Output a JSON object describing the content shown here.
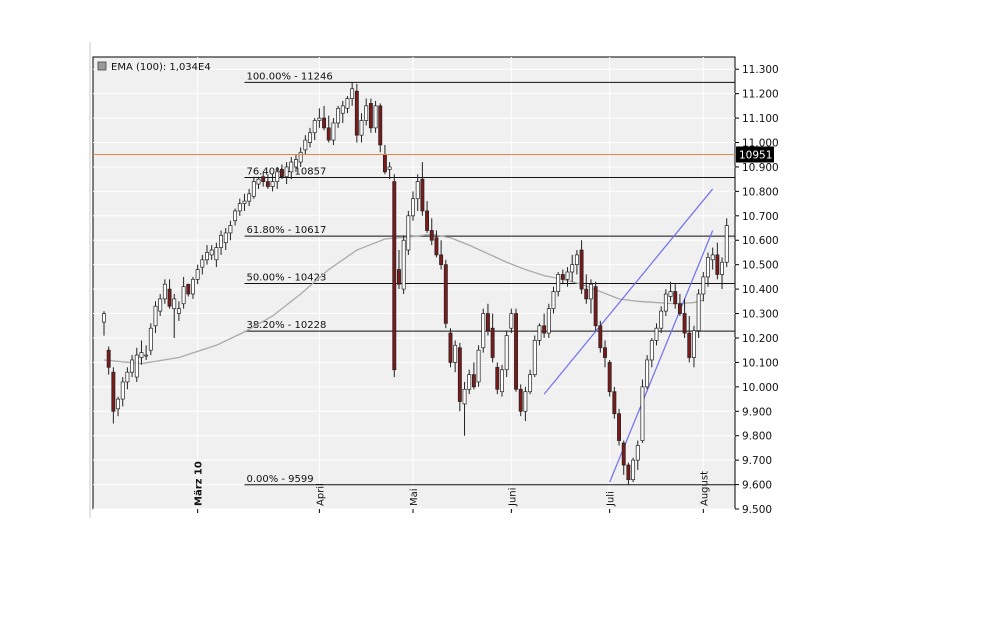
{
  "legend": {
    "label": "EMA (100): 1,034E4",
    "swatch_color": "#9a9a9a"
  },
  "chart_data": {
    "type": "candlestick",
    "y_axis": {
      "ylim": [
        9500,
        11350
      ],
      "ticks": [
        9500,
        9600,
        9700,
        9800,
        9900,
        10000,
        10100,
        10200,
        10300,
        10400,
        10500,
        10600,
        10700,
        10800,
        10900,
        11000,
        11100,
        11200,
        11300
      ],
      "tick_labels": [
        "9.500",
        "9.600",
        "9.700",
        "9.800",
        "9.900",
        "10.000",
        "10.100",
        "10.200",
        "10.300",
        "10.400",
        "10.500",
        "10.600",
        "10.700",
        "10.800",
        "10.900",
        "11.000",
        "11.100",
        "11.200",
        "11.300"
      ],
      "position": "right",
      "grid": true
    },
    "x_axis": {
      "labels": [
        "März 10",
        "April",
        "Mai",
        "Juni",
        "Juli",
        "August"
      ],
      "label_index": [
        20,
        46,
        66,
        87,
        108,
        128
      ],
      "count": 130
    },
    "fibonacci_levels": [
      {
        "label": "100.00% - 11246",
        "value": 11246
      },
      {
        "label": "76.40% - 10857",
        "value": 10857
      },
      {
        "label": "61.80% - 10617",
        "value": 10617
      },
      {
        "label": "50.00% - 10423",
        "value": 10423
      },
      {
        "label": "38.20% - 10228",
        "value": 10228
      },
      {
        "label": "0.00% - 9599",
        "value": 9599
      }
    ],
    "fib_line_start_index": 30,
    "price_marker": {
      "label": "10951",
      "value": 10951,
      "color": "#e8864a"
    },
    "ema": {
      "name": "EMA (100)",
      "color": "#aaaaaa",
      "points": [
        [
          0,
          10110
        ],
        [
          8,
          10095
        ],
        [
          16,
          10120
        ],
        [
          24,
          10170
        ],
        [
          30,
          10225
        ],
        [
          36,
          10290
        ],
        [
          42,
          10380
        ],
        [
          48,
          10480
        ],
        [
          54,
          10560
        ],
        [
          60,
          10605
        ],
        [
          66,
          10615
        ],
        [
          70,
          10625
        ],
        [
          74,
          10610
        ],
        [
          78,
          10580
        ],
        [
          82,
          10545
        ],
        [
          86,
          10510
        ],
        [
          90,
          10480
        ],
        [
          94,
          10455
        ],
        [
          98,
          10440
        ],
        [
          102,
          10420
        ],
        [
          106,
          10390
        ],
        [
          110,
          10360
        ],
        [
          114,
          10350
        ],
        [
          118,
          10345
        ],
        [
          122,
          10340
        ],
        [
          126,
          10345
        ],
        [
          128,
          10355
        ]
      ]
    },
    "trendlines": [
      {
        "color": "#6f6ff0",
        "points": [
          [
            94,
            9970
          ],
          [
            130,
            10810
          ]
        ]
      },
      {
        "color": "#6f6ff0",
        "points": [
          [
            108,
            9610
          ],
          [
            130,
            10640
          ]
        ]
      }
    ],
    "candle_colors": {
      "up": "#ffffff",
      "down": "#7a1a1a",
      "wick": "#222222"
    },
    "candles": [
      [
        10265,
        10310,
        10210,
        10300
      ],
      [
        10150,
        10165,
        10050,
        10080
      ],
      [
        10060,
        10080,
        9850,
        9900
      ],
      [
        9910,
        9960,
        9880,
        9950
      ],
      [
        9950,
        10040,
        9920,
        10020
      ],
      [
        10020,
        10080,
        9990,
        10060
      ],
      [
        10060,
        10130,
        10040,
        10110
      ],
      [
        10040,
        10160,
        10020,
        10130
      ],
      [
        10120,
        10190,
        10090,
        10140
      ],
      [
        10130,
        10170,
        10110,
        10130
      ],
      [
        10150,
        10260,
        10130,
        10240
      ],
      [
        10250,
        10350,
        10220,
        10330
      ],
      [
        10310,
        10380,
        10290,
        10360
      ],
      [
        10360,
        10440,
        10340,
        10420
      ],
      [
        10400,
        10440,
        10320,
        10330
      ],
      [
        10320,
        10380,
        10200,
        10360
      ],
      [
        10300,
        10350,
        10270,
        10320
      ],
      [
        10340,
        10450,
        10320,
        10410
      ],
      [
        10420,
        10420,
        10370,
        10380
      ],
      [
        10380,
        10450,
        10360,
        10440
      ],
      [
        10440,
        10500,
        10420,
        10480
      ],
      [
        10490,
        10540,
        10460,
        10520
      ],
      [
        10520,
        10580,
        10500,
        10550
      ],
      [
        10540,
        10580,
        10520,
        10560
      ],
      [
        10520,
        10590,
        10490,
        10570
      ],
      [
        10570,
        10640,
        10540,
        10620
      ],
      [
        10590,
        10650,
        10560,
        10630
      ],
      [
        10630,
        10680,
        10600,
        10660
      ],
      [
        10680,
        10730,
        10660,
        10720
      ],
      [
        10720,
        10770,
        10700,
        10750
      ],
      [
        10750,
        10790,
        10720,
        10760
      ],
      [
        10760,
        10810,
        10740,
        10790
      ],
      [
        10780,
        10860,
        10770,
        10840
      ],
      [
        10830,
        10860,
        10810,
        10850
      ],
      [
        10860,
        10880,
        10820,
        10840
      ],
      [
        10840,
        10870,
        10810,
        10820
      ],
      [
        10820,
        10870,
        10800,
        10840
      ],
      [
        10840,
        10900,
        10810,
        10880
      ],
      [
        10890,
        10910,
        10850,
        10860
      ],
      [
        10860,
        10920,
        10830,
        10900
      ],
      [
        10880,
        10940,
        10850,
        10920
      ],
      [
        10900,
        10950,
        10880,
        10930
      ],
      [
        10920,
        10980,
        10900,
        10960
      ],
      [
        10970,
        11030,
        10950,
        11010
      ],
      [
        11000,
        11060,
        10980,
        11040
      ],
      [
        11040,
        11100,
        11010,
        11090
      ],
      [
        11090,
        11140,
        11060,
        11100
      ],
      [
        11100,
        11150,
        11050,
        11060
      ],
      [
        11060,
        11110,
        11000,
        11010
      ],
      [
        11010,
        11100,
        10990,
        11080
      ],
      [
        11080,
        11150,
        11060,
        11140
      ],
      [
        11120,
        11170,
        11080,
        11150
      ],
      [
        11140,
        11190,
        11120,
        11180
      ],
      [
        11180,
        11246,
        11150,
        11220
      ],
      [
        11210,
        11240,
        11000,
        11030
      ],
      [
        11030,
        11120,
        11000,
        11090
      ],
      [
        11090,
        11180,
        11070,
        11150
      ],
      [
        11160,
        11180,
        11040,
        11060
      ],
      [
        11060,
        11170,
        11040,
        11150
      ],
      [
        11150,
        11160,
        10960,
        10990
      ],
      [
        10950,
        10990,
        10870,
        10880
      ],
      [
        10890,
        10920,
        10850,
        10900
      ],
      [
        10840,
        10870,
        10040,
        10070
      ],
      [
        10480,
        10560,
        10400,
        10420
      ],
      [
        10400,
        10620,
        10380,
        10600
      ],
      [
        10560,
        10720,
        10540,
        10700
      ],
      [
        10700,
        10800,
        10680,
        10770
      ],
      [
        10770,
        10870,
        10720,
        10840
      ],
      [
        10850,
        10920,
        10700,
        10720
      ],
      [
        10720,
        10760,
        10630,
        10640
      ],
      [
        10640,
        10690,
        10580,
        10600
      ],
      [
        10610,
        10640,
        10530,
        10540
      ],
      [
        10540,
        10600,
        10480,
        10500
      ],
      [
        10500,
        10520,
        10240,
        10260
      ],
      [
        10220,
        10240,
        10080,
        10100
      ],
      [
        10100,
        10190,
        10060,
        10170
      ],
      [
        10160,
        10180,
        9900,
        9940
      ],
      [
        9930,
        10020,
        9800,
        9990
      ],
      [
        9990,
        10070,
        9970,
        10050
      ],
      [
        10050,
        10100,
        9990,
        10000
      ],
      [
        10020,
        10170,
        10000,
        10150
      ],
      [
        10160,
        10320,
        10140,
        10300
      ],
      [
        10300,
        10340,
        10210,
        10230
      ],
      [
        10240,
        10300,
        10100,
        10120
      ],
      [
        10080,
        10100,
        9970,
        9990
      ],
      [
        9980,
        10090,
        9960,
        10070
      ],
      [
        10070,
        10230,
        10040,
        10210
      ],
      [
        10240,
        10320,
        10220,
        10300
      ],
      [
        10300,
        10320,
        9980,
        9990
      ],
      [
        9990,
        10010,
        9880,
        9900
      ],
      [
        9900,
        10000,
        9860,
        9980
      ],
      [
        9980,
        10070,
        9970,
        10050
      ],
      [
        10050,
        10210,
        10040,
        10190
      ],
      [
        10190,
        10260,
        10170,
        10250
      ],
      [
        10250,
        10300,
        10200,
        10220
      ],
      [
        10220,
        10340,
        10200,
        10320
      ],
      [
        10320,
        10410,
        10300,
        10390
      ],
      [
        10390,
        10470,
        10370,
        10460
      ],
      [
        10460,
        10480,
        10420,
        10440
      ],
      [
        10440,
        10490,
        10410,
        10470
      ],
      [
        10470,
        10540,
        10430,
        10500
      ],
      [
        10500,
        10560,
        10460,
        10540
      ],
      [
        10560,
        10600,
        10380,
        10400
      ],
      [
        10400,
        10460,
        10340,
        10360
      ],
      [
        10360,
        10440,
        10300,
        10420
      ],
      [
        10410,
        10430,
        10230,
        10250
      ],
      [
        10250,
        10270,
        10140,
        10160
      ],
      [
        10160,
        10190,
        10080,
        10120
      ],
      [
        10100,
        10110,
        9960,
        9980
      ],
      [
        9980,
        10000,
        9870,
        9890
      ],
      [
        9890,
        9910,
        9760,
        9780
      ],
      [
        9770,
        9780,
        9640,
        9680
      ],
      [
        9680,
        9690,
        9599,
        9620
      ],
      [
        9620,
        9710,
        9610,
        9700
      ],
      [
        9700,
        9780,
        9660,
        9760
      ],
      [
        9780,
        10030,
        9770,
        10000
      ],
      [
        10000,
        10130,
        9990,
        10110
      ],
      [
        10110,
        10200,
        10080,
        10190
      ],
      [
        10190,
        10260,
        10170,
        10240
      ],
      [
        10240,
        10330,
        10220,
        10310
      ],
      [
        10310,
        10400,
        10290,
        10380
      ],
      [
        10370,
        10430,
        10350,
        10390
      ],
      [
        10390,
        10420,
        10320,
        10340
      ],
      [
        10340,
        10380,
        10290,
        10300
      ],
      [
        10300,
        10360,
        10200,
        10220
      ],
      [
        10220,
        10290,
        10100,
        10120
      ],
      [
        10120,
        10250,
        10080,
        10230
      ],
      [
        10230,
        10400,
        10200,
        10380
      ],
      [
        10380,
        10470,
        10350,
        10450
      ],
      [
        10450,
        10550,
        10410,
        10530
      ],
      [
        10520,
        10570,
        10480,
        10540
      ],
      [
        10540,
        10590,
        10440,
        10460
      ],
      [
        10460,
        10530,
        10400,
        10510
      ],
      [
        10510,
        10690,
        10490,
        10660
      ]
    ]
  }
}
